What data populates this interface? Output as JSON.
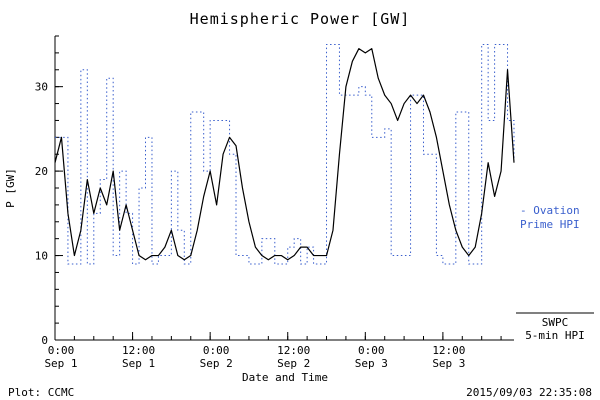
{
  "title": "Hemispheric Power [GW]",
  "footer": {
    "left": "Plot: CCMC",
    "right": "2015/09/03 22:35:08"
  },
  "colors": {
    "ovation": "#3a5fcd",
    "swpc": "#000000",
    "background": "#ffffff"
  },
  "legend": {
    "ovation_line1": "- Ovation",
    "ovation_line2": "Prime HPI",
    "swpc_line1": "SWPC",
    "swpc_line2": "5-min HPI"
  },
  "chart_data": {
    "type": "line",
    "title": "Hemispheric Power [GW]",
    "xlabel": "Date and Time",
    "ylabel": "P [GW]",
    "ylim": [
      0,
      36
    ],
    "yticks": [
      0,
      10,
      20,
      30
    ],
    "y_minor_step": 2,
    "xlim": [
      0,
      71
    ],
    "x_unit": "hours since 2015-09-01 00:00 UT",
    "x_start": 0,
    "x_step_hours": 1,
    "x_minor_step": 3,
    "x_ticks": [
      {
        "t": 0,
        "time": "0:00",
        "date": "Sep 1"
      },
      {
        "t": 12,
        "time": "12:00",
        "date": "Sep 1"
      },
      {
        "t": 24,
        "time": "0:00",
        "date": "Sep 2"
      },
      {
        "t": 36,
        "time": "12:00",
        "date": "Sep 2"
      },
      {
        "t": 48,
        "time": "0:00",
        "date": "Sep 3"
      },
      {
        "t": 60,
        "time": "12:00",
        "date": "Sep 3"
      }
    ],
    "grid": false,
    "legend_position": "right-outside",
    "series": [
      {
        "name": "Ovation Prime HPI",
        "style": "dotted-step",
        "color": "#3a5fcd",
        "values": [
          24,
          24,
          9,
          9,
          32,
          9,
          15,
          19,
          31,
          10,
          20,
          15,
          9,
          18,
          24,
          9,
          10,
          10,
          20,
          13,
          9,
          27,
          27,
          20,
          26,
          26,
          26,
          22,
          10,
          10,
          9,
          9,
          12,
          12,
          9,
          9,
          11,
          12,
          9,
          11,
          9,
          9,
          35,
          35,
          29,
          29,
          29,
          30,
          29,
          24,
          24,
          25,
          10,
          10,
          10,
          29,
          29,
          22,
          22,
          10,
          9,
          9,
          27,
          27,
          9,
          9,
          35,
          26,
          35,
          35,
          26,
          21
        ]
      },
      {
        "name": "SWPC 5-min HPI",
        "style": "solid",
        "color": "#000000",
        "values": [
          21,
          24,
          15,
          10,
          13,
          19,
          15,
          18,
          16,
          20,
          13,
          16,
          13,
          10,
          9.5,
          10,
          10,
          11,
          13,
          10,
          9.5,
          10,
          13,
          17,
          20,
          16,
          22,
          24,
          23,
          18,
          14,
          11,
          10,
          9.5,
          10,
          10,
          9.5,
          10,
          11,
          11,
          10,
          10,
          10,
          13,
          22,
          30,
          33,
          34.5,
          34,
          34.5,
          31,
          29,
          28,
          26,
          28,
          29,
          28,
          29,
          27,
          24,
          20,
          16,
          13,
          11,
          10,
          11,
          15,
          21,
          17,
          20,
          32,
          21
        ]
      }
    ]
  }
}
